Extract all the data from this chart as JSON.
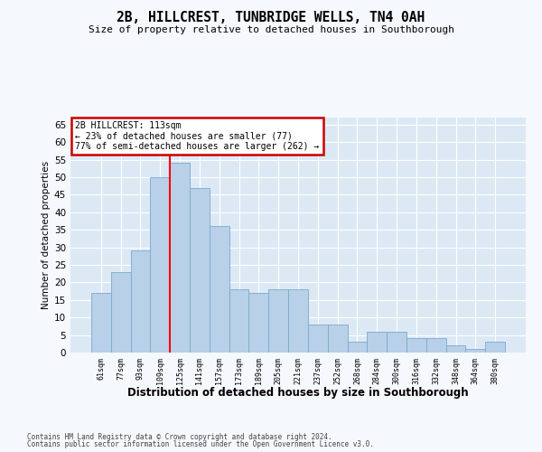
{
  "title": "2B, HILLCREST, TUNBRIDGE WELLS, TN4 0AH",
  "subtitle": "Size of property relative to detached houses in Southborough",
  "xlabel": "Distribution of detached houses by size in Southborough",
  "ylabel": "Number of detached properties",
  "categories": [
    "61sqm",
    "77sqm",
    "93sqm",
    "109sqm",
    "125sqm",
    "141sqm",
    "157sqm",
    "173sqm",
    "189sqm",
    "205sqm",
    "221sqm",
    "237sqm",
    "252sqm",
    "268sqm",
    "284sqm",
    "300sqm",
    "316sqm",
    "332sqm",
    "348sqm",
    "364sqm",
    "380sqm"
  ],
  "values": [
    17,
    23,
    29,
    50,
    54,
    47,
    36,
    18,
    17,
    18,
    18,
    8,
    8,
    3,
    6,
    6,
    4,
    4,
    2,
    1,
    3
  ],
  "bar_color": "#b8d0e8",
  "bar_edge_color": "#7aaacb",
  "plot_bg_color": "#dce9f5",
  "fig_bg_color": "#f5f8fc",
  "grid_color": "#ffffff",
  "red_line_x": 3.5,
  "annotation_text": "2B HILLCREST: 113sqm\n← 23% of detached houses are smaller (77)\n77% of semi-detached houses are larger (262) →",
  "annotation_box_facecolor": "#ffffff",
  "annotation_box_edgecolor": "#cc0000",
  "ylim_max": 67,
  "yticks": [
    0,
    5,
    10,
    15,
    20,
    25,
    30,
    35,
    40,
    45,
    50,
    55,
    60,
    65
  ],
  "footer1": "Contains HM Land Registry data © Crown copyright and database right 2024.",
  "footer2": "Contains public sector information licensed under the Open Government Licence v3.0."
}
